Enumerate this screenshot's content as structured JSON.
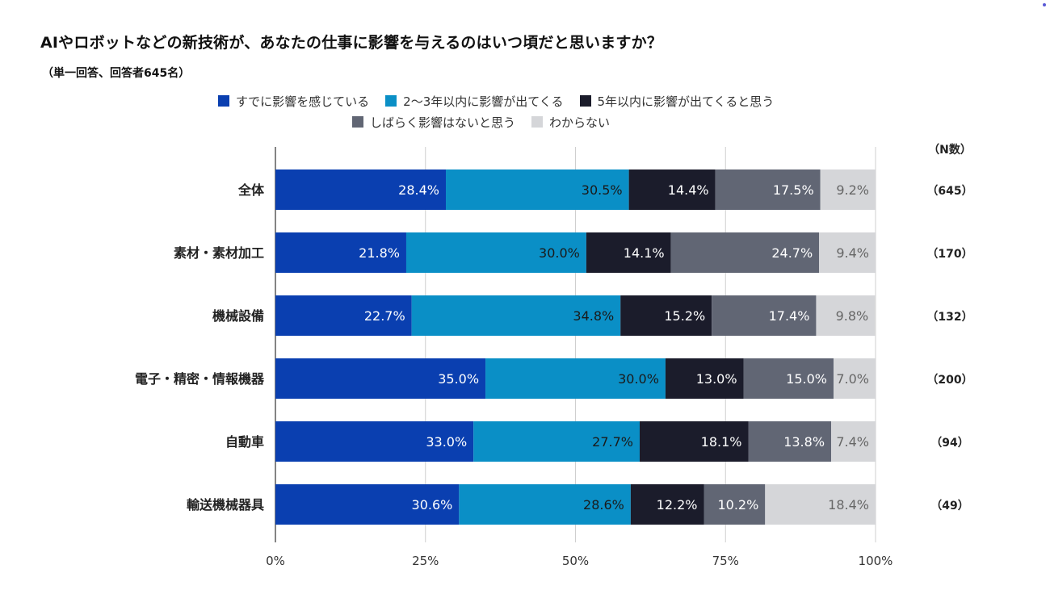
{
  "title": "AIやロボットなどの新技術が、あなたの仕事に影響を与えるのはいつ頃だと思いますか？",
  "subtitle": "（単一回答、回答者645名）",
  "chart_data": {
    "type": "bar",
    "orientation": "horizontal",
    "stacked": true,
    "percent_scale": true,
    "categories": [
      "全体",
      "素材・素材加工",
      "機械設備",
      "電子・精密・情報機器",
      "自動車",
      "輸送機械器具"
    ],
    "series": [
      {
        "name": "すでに影響を感じている",
        "color": "#0a3fb0",
        "values": [
          28.4,
          21.8,
          22.7,
          35.0,
          33.0,
          30.6
        ],
        "labels": [
          "28.4%",
          "21.8%",
          "22.7%",
          "35.0%",
          "33.0%",
          "30.6%"
        ]
      },
      {
        "name": "2〜3年以内に影響が出てくる",
        "color": "#0a8fc6",
        "values": [
          30.5,
          30.0,
          34.8,
          30.0,
          27.7,
          28.6
        ],
        "labels": [
          "30.5%",
          "30.0%",
          "34.8%",
          "30.0%",
          "27.7%",
          "28.6%"
        ]
      },
      {
        "name": "5年以内に影響が出てくると思う",
        "color": "#1b1c2b",
        "values": [
          14.4,
          14.1,
          15.2,
          13.0,
          18.1,
          12.2
        ],
        "labels": [
          "14.4%",
          "14.1%",
          "15.2%",
          "13.0%",
          "18.1%",
          "12.2%"
        ]
      },
      {
        "name": "しばらく影響はないと思う",
        "color": "#616674",
        "values": [
          17.5,
          24.7,
          17.4,
          15.0,
          13.8,
          10.2
        ],
        "labels": [
          "17.5%",
          "24.7%",
          "17.4%",
          "15.0%",
          "13.8%",
          "10.2%"
        ]
      },
      {
        "name": "わからない",
        "color": "#d5d6d9",
        "values": [
          9.2,
          9.4,
          9.8,
          7.0,
          7.4,
          18.4
        ],
        "labels": [
          "9.2%",
          "9.4%",
          "9.8%",
          "7.0%",
          "7.4%",
          "18.4%"
        ]
      }
    ],
    "n_header": "（N数）",
    "n_labels": [
      "（645）",
      "（170）",
      "（132）",
      "（200）",
      "（94）",
      "（49）"
    ],
    "xlim": [
      0,
      100
    ],
    "x_ticks": [
      0,
      25,
      50,
      75,
      100
    ],
    "x_tick_labels": [
      "0%",
      "25%",
      "50%",
      "75%",
      "100%"
    ],
    "grid": true,
    "legend_position": "top"
  }
}
